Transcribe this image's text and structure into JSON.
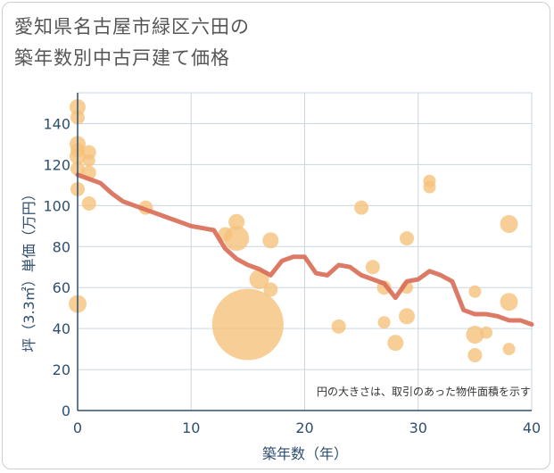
{
  "title_line1": "愛知県名古屋市緑区六田の",
  "title_line2": "築年数別中古戸建て価格",
  "chart_data": {
    "type": "scatter",
    "title": "愛知県名古屋市緑区六田の築年数別中古戸建て価格",
    "xlabel": "築年数（年）",
    "ylabel": "坪（3.3㎡）単価（万円）",
    "xlim": [
      0,
      40
    ],
    "ylim": [
      0,
      155
    ],
    "x_ticks": [
      0,
      10,
      20,
      30,
      40
    ],
    "y_ticks": [
      0,
      20,
      40,
      60,
      80,
      100,
      120,
      140
    ],
    "grid": true,
    "annotation": "円の大きさは、取引のあった物件面積を示す",
    "colors": {
      "bubble": "#f5c27a",
      "line": "#d96b55",
      "grid": "#c9d6e3",
      "axis": "#2f4f6f"
    },
    "bubbles": [
      {
        "x": 0,
        "y": 148,
        "size": 9
      },
      {
        "x": 0,
        "y": 143,
        "size": 8
      },
      {
        "x": 0,
        "y": 130,
        "size": 9
      },
      {
        "x": 0,
        "y": 127,
        "size": 8
      },
      {
        "x": 0,
        "y": 124,
        "size": 9
      },
      {
        "x": 0,
        "y": 118,
        "size": 8
      },
      {
        "x": 0,
        "y": 108,
        "size": 8
      },
      {
        "x": 0,
        "y": 52,
        "size": 10
      },
      {
        "x": 1,
        "y": 126,
        "size": 8
      },
      {
        "x": 1,
        "y": 122,
        "size": 7
      },
      {
        "x": 1,
        "y": 116,
        "size": 8
      },
      {
        "x": 1,
        "y": 101,
        "size": 8
      },
      {
        "x": 6,
        "y": 99,
        "size": 8
      },
      {
        "x": 13,
        "y": 86,
        "size": 8
      },
      {
        "x": 14,
        "y": 92,
        "size": 9
      },
      {
        "x": 14,
        "y": 84,
        "size": 14
      },
      {
        "x": 15,
        "y": 42,
        "size": 40
      },
      {
        "x": 16,
        "y": 64,
        "size": 11
      },
      {
        "x": 17,
        "y": 83,
        "size": 9
      },
      {
        "x": 17,
        "y": 59,
        "size": 8
      },
      {
        "x": 23,
        "y": 41,
        "size": 8
      },
      {
        "x": 25,
        "y": 99,
        "size": 8
      },
      {
        "x": 26,
        "y": 70,
        "size": 8
      },
      {
        "x": 27,
        "y": 60,
        "size": 8
      },
      {
        "x": 27,
        "y": 43,
        "size": 7
      },
      {
        "x": 28,
        "y": 33,
        "size": 9
      },
      {
        "x": 29,
        "y": 84,
        "size": 8
      },
      {
        "x": 29,
        "y": 60,
        "size": 7
      },
      {
        "x": 29,
        "y": 46,
        "size": 9
      },
      {
        "x": 31,
        "y": 112,
        "size": 7
      },
      {
        "x": 31,
        "y": 109,
        "size": 7
      },
      {
        "x": 35,
        "y": 58,
        "size": 7
      },
      {
        "x": 35,
        "y": 37,
        "size": 10
      },
      {
        "x": 35,
        "y": 27,
        "size": 8
      },
      {
        "x": 36,
        "y": 38,
        "size": 7
      },
      {
        "x": 38,
        "y": 91,
        "size": 10
      },
      {
        "x": 38,
        "y": 53,
        "size": 10
      },
      {
        "x": 38,
        "y": 30,
        "size": 7
      }
    ],
    "trend": {
      "x": [
        0,
        1,
        2,
        3,
        4,
        5,
        6,
        7,
        8,
        9,
        10,
        11,
        12,
        13,
        14,
        15,
        16,
        17,
        18,
        19,
        20,
        21,
        22,
        23,
        24,
        25,
        26,
        27,
        28,
        29,
        30,
        31,
        32,
        33,
        34,
        35,
        36,
        37,
        38,
        39,
        40
      ],
      "y": [
        115,
        113,
        111,
        106,
        102,
        100,
        98,
        96,
        94,
        92,
        90,
        89,
        88,
        79,
        74,
        71,
        69,
        66,
        73,
        75,
        75,
        67,
        66,
        71,
        70,
        66,
        64,
        62,
        55,
        63,
        64,
        68,
        66,
        63,
        49,
        47,
        47,
        46,
        44,
        44,
        42
      ]
    }
  }
}
